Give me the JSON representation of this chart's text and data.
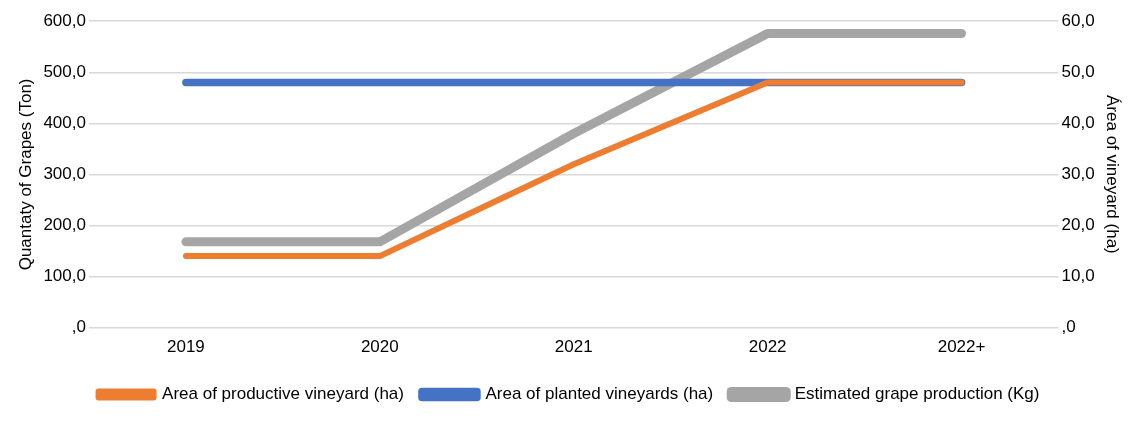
{
  "chart_data": {
    "type": "line",
    "categories": [
      "2019",
      "2020",
      "2021",
      "2022",
      "2022+"
    ],
    "ylabel": "Quantaty of Grapes (Ton)",
    "y2label": "Área of vineyard (ha)",
    "series": [
      {
        "name": "Estimated grape production (Kg)",
        "color": "#a5a5a5",
        "values": [
          168,
          168,
          380,
          576,
          576
        ]
      },
      {
        "name": "Area of planted vineyards (ha)",
        "color": "#4472c4",
        "axis": "y2",
        "values": [
          48,
          48,
          48,
          48,
          48
        ]
      },
      {
        "name": "Area of productive vineyard (ha)",
        "color": "#ed7d31",
        "axis": "y2",
        "values": [
          14,
          14,
          32,
          48,
          48
        ]
      }
    ],
    "ylim": [
      0,
      600
    ],
    "yticks": [
      {
        "value": 0,
        "label": ",0"
      },
      {
        "value": 100,
        "label": "100,0"
      },
      {
        "value": 200,
        "label": "200,0"
      },
      {
        "value": 300,
        "label": "300,0"
      },
      {
        "value": 400,
        "label": "400,0"
      },
      {
        "value": 500,
        "label": "500,0"
      },
      {
        "value": 600,
        "label": "600,0"
      }
    ],
    "y2lim": [
      0,
      60
    ],
    "y2ticks": [
      {
        "value": 0,
        "label": ",0"
      },
      {
        "value": 10,
        "label": "10,0"
      },
      {
        "value": 20,
        "label": "20,0"
      },
      {
        "value": 30,
        "label": "30,0"
      },
      {
        "value": 40,
        "label": "40,0"
      },
      {
        "value": 50,
        "label": "50,0"
      },
      {
        "value": 60,
        "label": "60,0"
      }
    ],
    "grid": "y",
    "legend": "bottom",
    "marker": "none",
    "line_style": "solid"
  }
}
